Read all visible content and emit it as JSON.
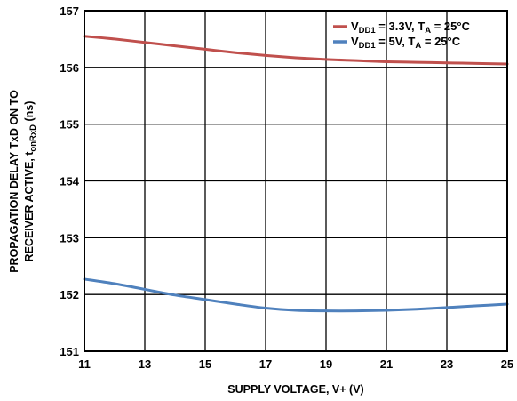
{
  "chart_data": {
    "type": "line",
    "xlabel": "SUPPLY VOLTAGE, V+ (V)",
    "ylabel_line1": "PROPAGATION DELAY TxD ON TO",
    "ylabel_line2_main": "RECEIVER ACTIVE, t",
    "ylabel_line2_sub": "onRxD",
    "ylabel_line2_unit": " (ns)",
    "xlim": [
      11,
      25
    ],
    "ylim": [
      151,
      157
    ],
    "xticks": [
      "11",
      "13",
      "15",
      "17",
      "19",
      "21",
      "23",
      "25"
    ],
    "yticks": [
      "151",
      "152",
      "153",
      "154",
      "155",
      "156",
      "157"
    ],
    "grid": true,
    "legend_position": "top-right",
    "series": [
      {
        "legend": {
          "pre": "V",
          "sub1": "DD1",
          "mid": " = 3.3V, T",
          "sub2": "A",
          "post": " = 25°C"
        },
        "color": "#c0504d",
        "x": [
          11,
          12,
          13,
          14,
          15,
          16,
          17,
          18,
          19,
          20,
          21,
          22,
          23,
          24,
          25
        ],
        "y": [
          156.55,
          156.5,
          156.44,
          156.38,
          156.32,
          156.26,
          156.21,
          156.17,
          156.14,
          156.12,
          156.1,
          156.09,
          156.08,
          156.07,
          156.06
        ]
      },
      {
        "legend": {
          "pre": "V",
          "sub1": "DD1",
          "mid": " = 5V, T",
          "sub2": "A",
          "post": " = 25°C"
        },
        "color": "#4f81bd",
        "x": [
          11,
          12,
          13,
          14,
          15,
          16,
          17,
          18,
          19,
          20,
          21,
          22,
          23,
          24,
          25
        ],
        "y": [
          152.27,
          152.19,
          152.09,
          151.99,
          151.91,
          151.83,
          151.76,
          151.72,
          151.71,
          151.71,
          151.72,
          151.74,
          151.77,
          151.8,
          151.83
        ]
      }
    ]
  }
}
